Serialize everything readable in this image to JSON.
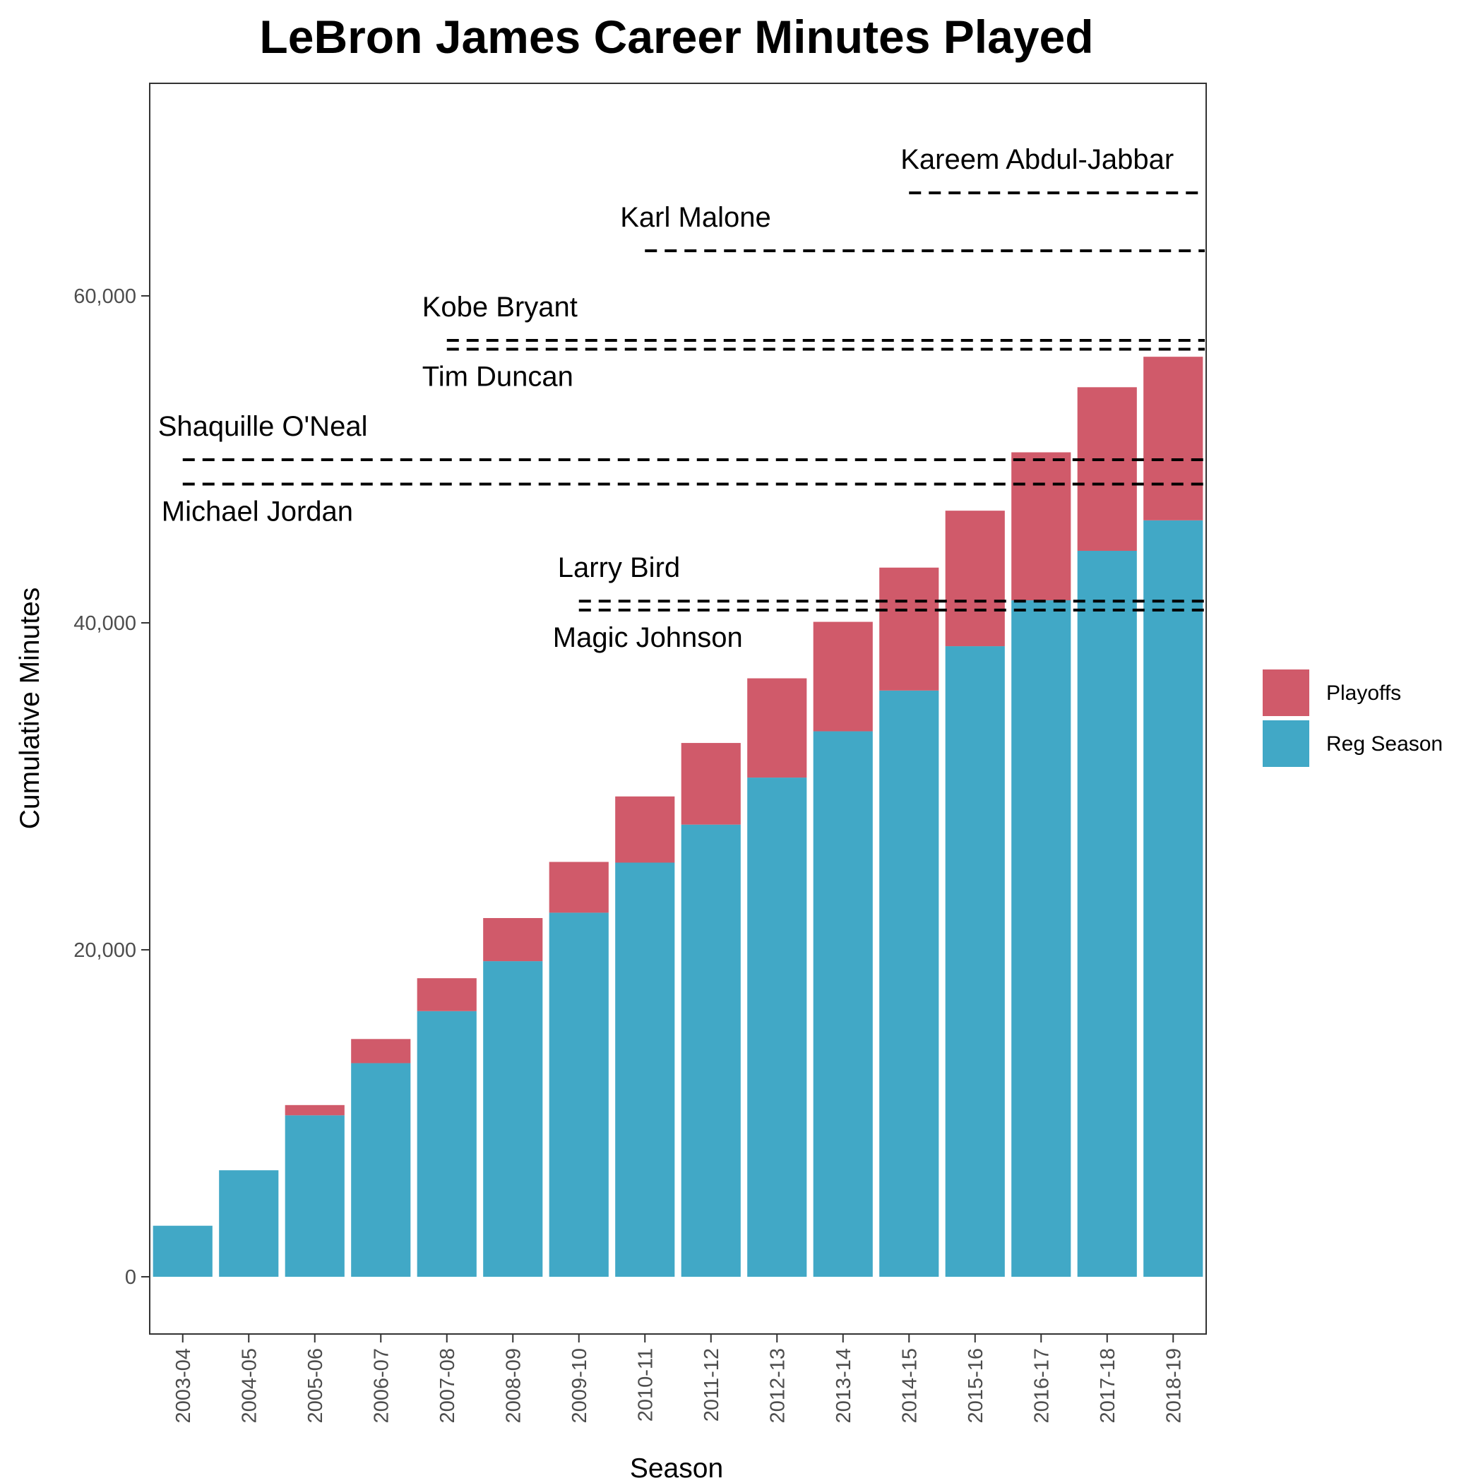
{
  "chart_data": {
    "type": "bar",
    "stacked": true,
    "title": "LeBron James Career Minutes Played",
    "xlabel": "Season",
    "ylabel": "Cumulative Minutes",
    "ylim": [
      -3500,
      73000
    ],
    "yticks": [
      0,
      20000,
      40000,
      60000
    ],
    "ytick_labels": [
      "0",
      "20,000",
      "40,000",
      "60,000"
    ],
    "grid": false,
    "legend_position": "right",
    "categories": [
      "2003-04",
      "2004-05",
      "2005-06",
      "2006-07",
      "2007-08",
      "2008-09",
      "2009-10",
      "2010-11",
      "2011-12",
      "2012-13",
      "2013-14",
      "2014-15",
      "2015-16",
      "2016-17",
      "2017-18",
      "2018-19"
    ],
    "series": [
      {
        "name": "Reg Season",
        "color": "#41a8c6",
        "values": [
          3122,
          6515,
          9876,
          13067,
          16250,
          19304,
          22270,
          25333,
          27658,
          30535,
          33366,
          35859,
          38570,
          41379,
          44405,
          46269
        ]
      },
      {
        "name": "Playoffs",
        "color": "#d05a6a",
        "values": [
          0,
          0,
          627,
          1476,
          2013,
          2638,
          3106,
          4048,
          4994,
          6071,
          6695,
          7519,
          8290,
          9051,
          10007,
          10007
        ]
      }
    ],
    "reference_lines": [
      {
        "label": "Kareem Abdul-Jabbar",
        "value": 66297,
        "start_index": 11
      },
      {
        "label": "Karl Malone",
        "value": 62759,
        "start_index": 7
      },
      {
        "label": "Kobe Bryant",
        "value": 57278,
        "start_index": 4
      },
      {
        "label": "Tim Duncan",
        "value": 56738,
        "start_index": 4
      },
      {
        "label": "Shaquille O'Neal",
        "value": 49974,
        "start_index": 0
      },
      {
        "label": "Michael Jordan",
        "value": 48485,
        "start_index": 0
      },
      {
        "label": "Larry Bird",
        "value": 41329,
        "start_index": 6
      },
      {
        "label": "Magic Johnson",
        "value": 40783,
        "start_index": 6
      }
    ]
  }
}
